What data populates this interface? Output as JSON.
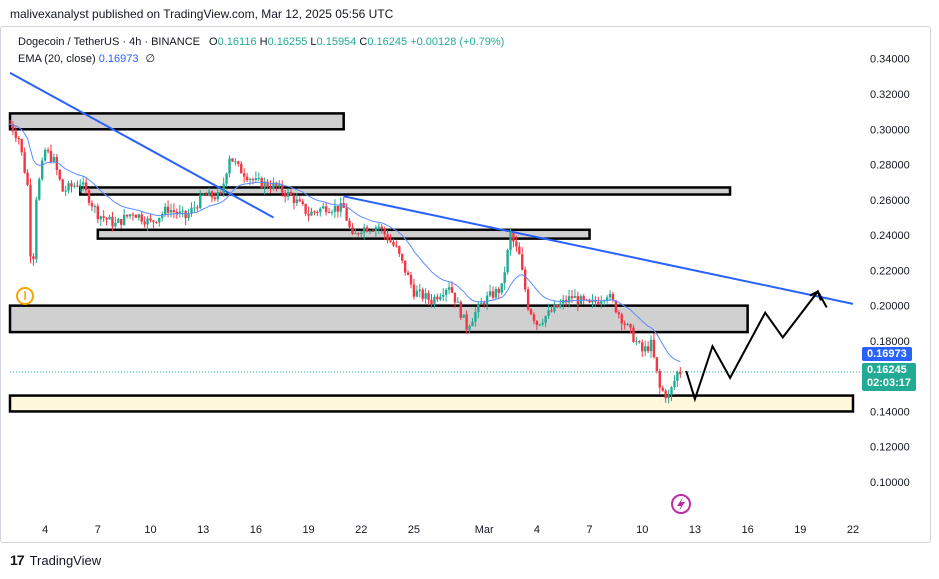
{
  "header": {
    "published_by": "malivexanalyst published on TradingView.com, Mar 12, 2025 05:56 UTC"
  },
  "legend": {
    "symbol": "Dogecoin / TetherUS · 4h · BINANCE",
    "o_label": "O",
    "o_value": "0.16116",
    "h_label": "H",
    "h_value": "0.16255",
    "l_label": "L",
    "l_value": "0.15954",
    "c_label": "C",
    "c_value": "0.16245",
    "change": "+0.00128 (+0.79%)",
    "ema_label": "EMA (20, close)",
    "ema_value": "0.16973",
    "eye_icon": "∅"
  },
  "price_tags": {
    "ema": "0.16973",
    "last": "0.16245",
    "countdown": "02:03:17"
  },
  "footer": {
    "brand": "TradingView"
  },
  "colors": {
    "up": "#22ab94",
    "down": "#f23645",
    "trend": "#2962ff",
    "zone_fill": "#d0d0d0",
    "support_fill": "#fff8dc"
  },
  "chart_data": {
    "type": "candlestick",
    "title": "Dogecoin / TetherUS · 4h · BINANCE",
    "y_ticks": [
      "0.34000",
      "0.32000",
      "0.30000",
      "0.28000",
      "0.26000",
      "0.24000",
      "0.22000",
      "0.20000",
      "0.18000",
      "0.16000",
      "0.14000",
      "0.12000",
      "0.10000"
    ],
    "x_ticks": [
      "4",
      "7",
      "10",
      "13",
      "16",
      "19",
      "22",
      "25",
      "Mar",
      "4",
      "7",
      "10",
      "13",
      "16",
      "19",
      "22"
    ],
    "ylim": [
      0.09,
      0.35
    ],
    "x_range_days": [
      "2025-02-02",
      "2025-03-22"
    ],
    "price_path": [
      [
        "2025-02-02T00:00",
        0.303
      ],
      [
        "2025-02-02T12:00",
        0.295
      ],
      [
        "2025-02-03T00:00",
        0.268
      ],
      [
        "2025-02-03T06:00",
        0.212
      ],
      [
        "2025-02-03T12:00",
        0.262
      ],
      [
        "2025-02-04T00:00",
        0.288
      ],
      [
        "2025-02-04T12:00",
        0.282
      ],
      [
        "2025-02-05T00:00",
        0.265
      ],
      [
        "2025-02-06T00:00",
        0.27
      ],
      [
        "2025-02-07T00:00",
        0.252
      ],
      [
        "2025-02-08T00:00",
        0.246
      ],
      [
        "2025-02-09T00:00",
        0.253
      ],
      [
        "2025-02-10T00:00",
        0.247
      ],
      [
        "2025-02-11T00:00",
        0.255
      ],
      [
        "2025-02-12T00:00",
        0.25
      ],
      [
        "2025-02-13T00:00",
        0.262
      ],
      [
        "2025-02-14T00:00",
        0.262
      ],
      [
        "2025-02-14T12:00",
        0.285
      ],
      [
        "2025-02-15T00:00",
        0.278
      ],
      [
        "2025-02-16T00:00",
        0.27
      ],
      [
        "2025-02-17T00:00",
        0.268
      ],
      [
        "2025-02-18T00:00",
        0.262
      ],
      [
        "2025-02-19T00:00",
        0.252
      ],
      [
        "2025-02-20T00:00",
        0.256
      ],
      [
        "2025-02-21T00:00",
        0.255
      ],
      [
        "2025-02-21T12:00",
        0.238
      ],
      [
        "2025-02-22T00:00",
        0.244
      ],
      [
        "2025-02-23T00:00",
        0.245
      ],
      [
        "2025-02-24T00:00",
        0.232
      ],
      [
        "2025-02-25T00:00",
        0.208
      ],
      [
        "2025-02-26T00:00",
        0.203
      ],
      [
        "2025-02-27T00:00",
        0.212
      ],
      [
        "2025-02-28T00:00",
        0.188
      ],
      [
        "2025-02-28T12:00",
        0.196
      ],
      [
        "2025-03-01T00:00",
        0.203
      ],
      [
        "2025-03-02T00:00",
        0.21
      ],
      [
        "2025-03-02T12:00",
        0.24
      ],
      [
        "2025-03-03T00:00",
        0.228
      ],
      [
        "2025-03-03T12:00",
        0.2
      ],
      [
        "2025-03-04T00:00",
        0.19
      ],
      [
        "2025-03-05T00:00",
        0.198
      ],
      [
        "2025-03-06T00:00",
        0.205
      ],
      [
        "2025-03-07T00:00",
        0.2
      ],
      [
        "2025-03-08T00:00",
        0.207
      ],
      [
        "2025-03-09T00:00",
        0.19
      ],
      [
        "2025-03-10T00:00",
        0.174
      ],
      [
        "2025-03-10T12:00",
        0.178
      ],
      [
        "2025-03-11T00:00",
        0.153
      ],
      [
        "2025-03-11T12:00",
        0.148
      ],
      [
        "2025-03-12T00:00",
        0.162
      ],
      [
        "2025-03-12T06:00",
        0.1625
      ]
    ],
    "ema_last": 0.16973,
    "zones": [
      {
        "from": "2025-02-02",
        "to": "2025-02-21",
        "low": 0.3,
        "high": 0.309
      },
      {
        "from": "2025-02-06",
        "to": "2025-03-15",
        "low": 0.263,
        "high": 0.267
      },
      {
        "from": "2025-02-07",
        "to": "2025-03-07",
        "low": 0.238,
        "high": 0.243
      },
      {
        "from": "2025-02-02",
        "to": "2025-03-16",
        "low": 0.185,
        "high": 0.2
      },
      {
        "from": "2025-02-02",
        "to": "2025-03-22",
        "low": 0.14,
        "high": 0.149
      }
    ],
    "trendlines": [
      {
        "from": [
          "2025-02-02",
          0.332
        ],
        "to": [
          "2025-02-17",
          0.25
        ]
      },
      {
        "from": [
          "2025-02-21",
          0.262
        ],
        "to": [
          "2025-03-22",
          0.201
        ]
      }
    ],
    "projection_path": [
      [
        "2025-03-12T12:00",
        0.163
      ],
      [
        "2025-03-13",
        0.147
      ],
      [
        "2025-03-14",
        0.177
      ],
      [
        "2025-03-15",
        0.159
      ],
      [
        "2025-03-17",
        0.196
      ],
      [
        "2025-03-18",
        0.182
      ],
      [
        "2025-03-20",
        0.208
      ],
      [
        "2025-03-20T12:00",
        0.199
      ]
    ]
  }
}
